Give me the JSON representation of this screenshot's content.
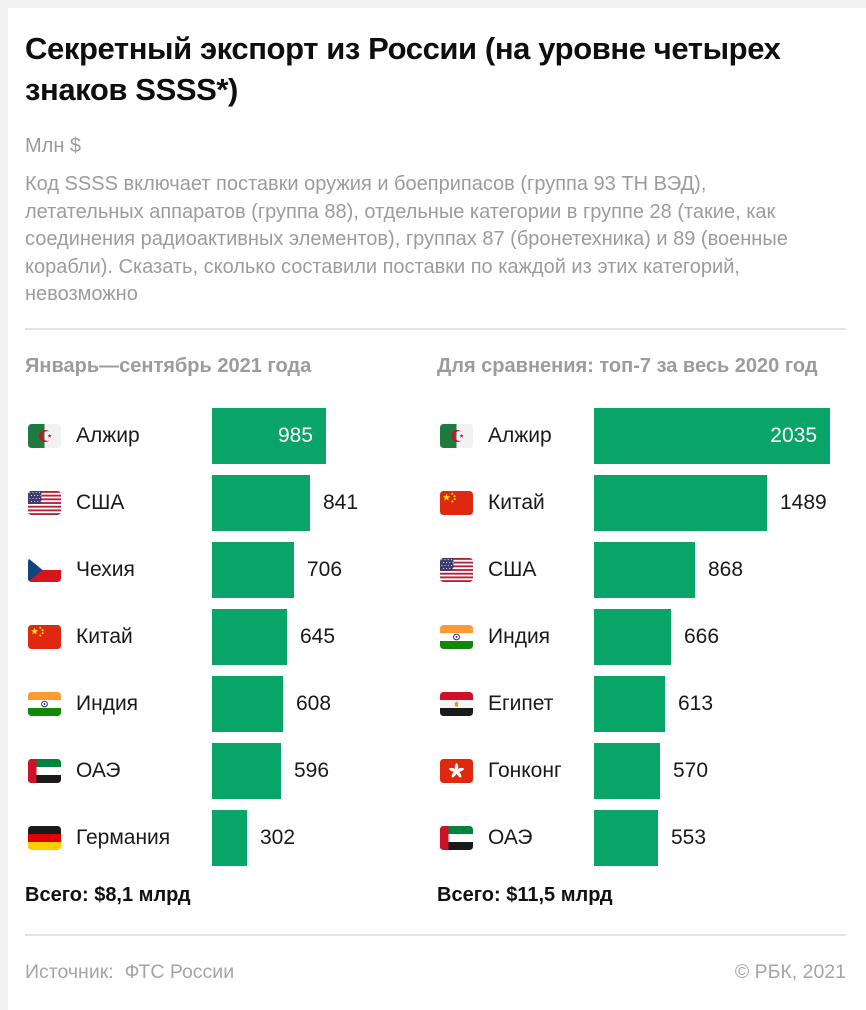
{
  "title": "Секретный экспорт из России (на уровне четырех знаков SSSS*)",
  "units_label": "Млн $",
  "description": "Код SSSS включает поставки оружия и боеприпасов (группа 93 ТН ВЭД), летательных аппаратов (группа 88), отдельные категории в группе 28 (такие, как соединения радиоактивных элементов), группах 87 (бронетехника) и 89 (военные корабли). Сказать, сколько составили поставки по каждой из этих категорий, невозможно",
  "colors": {
    "bar": "#09A568",
    "value_inside_text": "#FFFFFF",
    "text_dark": "#161616",
    "text_gray": "#9C9C9C",
    "divider": "#E4E4E4"
  },
  "chart_data": [
    {
      "type": "bar",
      "orientation": "horizontal",
      "title": "Январь—сентябрь 2021 года",
      "unit": "млн $",
      "xlim": [
        0,
        2035
      ],
      "categories": [
        "Алжир",
        "США",
        "Чехия",
        "Китай",
        "Индия",
        "ОАЭ",
        "Германия"
      ],
      "values": [
        985,
        841,
        706,
        645,
        608,
        596,
        302
      ],
      "items": [
        {
          "label": "Алжир",
          "flag": "flag-algeria",
          "value": 985
        },
        {
          "label": "США",
          "flag": "flag-usa",
          "value": 841
        },
        {
          "label": "Чехия",
          "flag": "flag-czechia",
          "value": 706
        },
        {
          "label": "Китай",
          "flag": "flag-china",
          "value": 645
        },
        {
          "label": "Индия",
          "flag": "flag-india",
          "value": 608
        },
        {
          "label": "ОАЭ",
          "flag": "flag-uae",
          "value": 596
        },
        {
          "label": "Германия",
          "flag": "flag-germany",
          "value": 302
        }
      ],
      "total": "Всего: $8,1 млрд"
    },
    {
      "type": "bar",
      "orientation": "horizontal",
      "title": "Для сравнения: топ-7 за весь 2020 год",
      "unit": "млн $",
      "xlim": [
        0,
        2035
      ],
      "categories": [
        "Алжир",
        "Китай",
        "США",
        "Индия",
        "Египет",
        "Гонконг",
        "ОАЭ"
      ],
      "values": [
        2035,
        1489,
        868,
        666,
        613,
        570,
        553
      ],
      "items": [
        {
          "label": "Алжир",
          "flag": "flag-algeria",
          "value": 2035
        },
        {
          "label": "Китай",
          "flag": "flag-china",
          "value": 1489
        },
        {
          "label": "США",
          "flag": "flag-usa",
          "value": 868
        },
        {
          "label": "Индия",
          "flag": "flag-india",
          "value": 666
        },
        {
          "label": "Египет",
          "flag": "flag-egypt",
          "value": 613
        },
        {
          "label": "Гонконг",
          "flag": "flag-hongkong",
          "value": 570
        },
        {
          "label": "ОАЭ",
          "flag": "flag-uae",
          "value": 553
        }
      ],
      "total": "Всего: $11,5 млрд"
    }
  ],
  "footer": {
    "source_label": "Источник:",
    "source_value": "ФТС России",
    "copyright": "© РБК, 2021"
  }
}
